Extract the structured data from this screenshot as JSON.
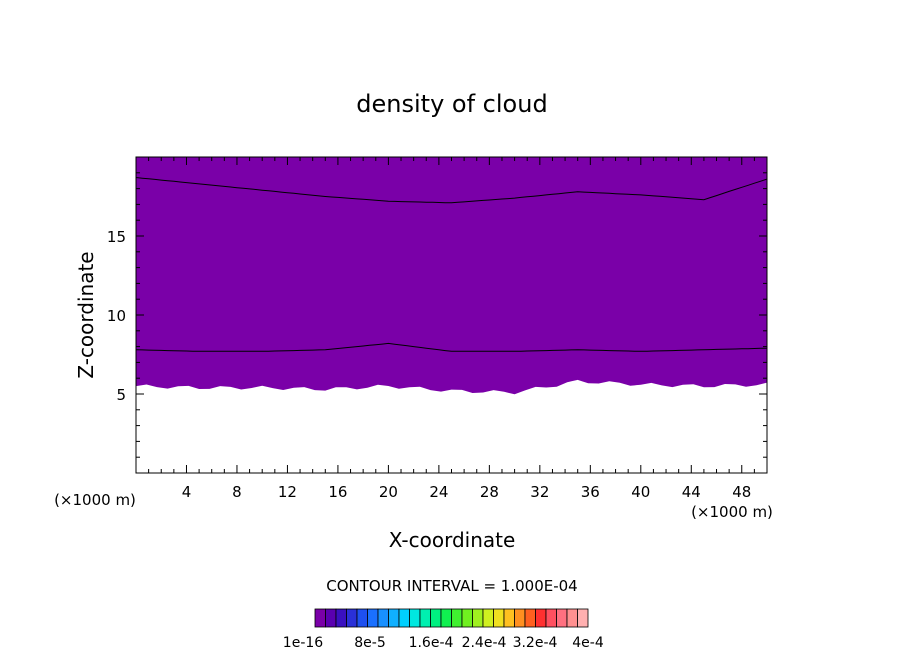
{
  "chart_data": {
    "type": "heatmap",
    "title": "density of cloud",
    "xlabel": "X-coordinate",
    "ylabel": "Z-coordinate",
    "x_unit_left": "(×1000 m)",
    "x_unit_right": "(×1000 m)",
    "xlim": [
      0,
      50
    ],
    "ylim": [
      0,
      20
    ],
    "x_ticks": [
      4,
      8,
      12,
      16,
      20,
      24,
      28,
      32,
      36,
      40,
      44,
      48
    ],
    "y_ticks": [
      5,
      10,
      15
    ],
    "contour_interval_text": "CONTOUR INTERVAL = 1.000E-04",
    "colorbar": {
      "colors": [
        "#7a00a8",
        "#5a00b0",
        "#3a10c0",
        "#2a30d8",
        "#1e50f0",
        "#1a70ff",
        "#1890ff",
        "#10b0ff",
        "#00d0ff",
        "#00e8e0",
        "#00f0b0",
        "#00f080",
        "#10f050",
        "#40f030",
        "#70f020",
        "#a0f020",
        "#d0f020",
        "#f0e020",
        "#ffc020",
        "#ff9020",
        "#ff6020",
        "#ff3030",
        "#ff5060",
        "#ff7080",
        "#ff9090",
        "#ffb0b0"
      ],
      "tick_labels": [
        "1e-16",
        "8e-5",
        "1.6e-4",
        "2.4e-4",
        "3.2e-4",
        "4e-4"
      ]
    },
    "cloud_profile": {
      "x": [
        0,
        5,
        10,
        15,
        20,
        25,
        30,
        35,
        40,
        45,
        50
      ],
      "base_z": [
        5.5,
        5.4,
        5.4,
        5.3,
        5.5,
        5.2,
        5.1,
        5.8,
        5.6,
        5.5,
        5.6
      ],
      "top_z": [
        19.8,
        19.8,
        19.8,
        19.8,
        19.8,
        19.8,
        19.8,
        19.8,
        19.8,
        19.8,
        19.8
      ]
    },
    "contour_lines": [
      {
        "z": [
          18.7,
          18.3,
          17.9,
          17.5,
          17.2,
          17.1,
          17.4,
          17.8,
          17.6,
          17.3,
          18.6
        ]
      },
      {
        "z": [
          7.8,
          7.7,
          7.7,
          7.8,
          8.2,
          7.7,
          7.7,
          7.8,
          7.7,
          7.8,
          7.9
        ]
      }
    ]
  }
}
